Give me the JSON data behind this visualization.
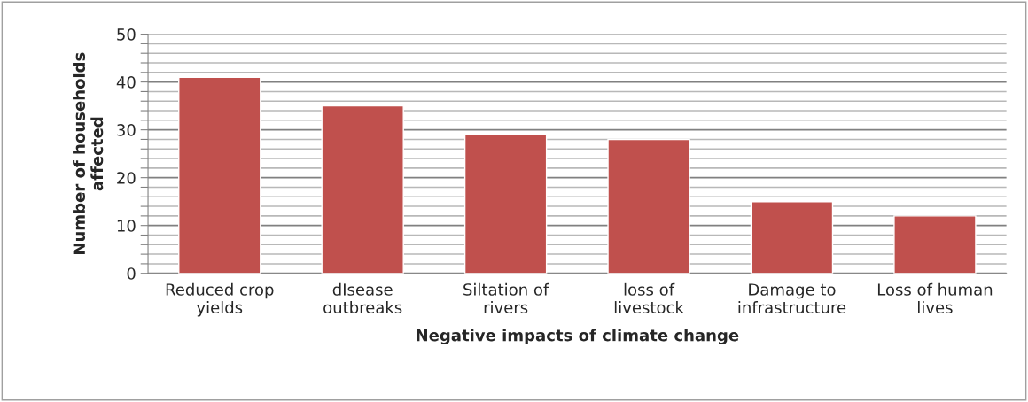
{
  "chart_data": {
    "type": "bar",
    "categories": [
      "Reduced crop\nyields",
      "dIsease\noutbreaks",
      "Siltation of\nrivers",
      "loss of\nlivestock",
      "Damage to\ninfrastructure",
      "Loss of human\nlives"
    ],
    "values": [
      41,
      35,
      29,
      28,
      15,
      12
    ],
    "color": "#c0504d",
    "xlabel": "Negative impacts of climate change",
    "ylabel": "Number of households\naffected",
    "ylim": [
      0,
      50
    ],
    "yticks": [
      0,
      {
        "value": 2,
        "label": null
      },
      {
        "value": 4,
        "label": null
      },
      {
        "value": 6,
        "label": null
      },
      {
        "value": 8,
        "label": null
      },
      10,
      {
        "value": 12,
        "label": null
      },
      {
        "value": 14,
        "label": null
      },
      {
        "value": 16,
        "label": null
      },
      {
        "value": 18,
        "label": null
      },
      20,
      {
        "value": 22,
        "label": null
      },
      {
        "value": 24,
        "label": null
      },
      {
        "value": 26,
        "label": null
      },
      {
        "value": 28,
        "label": null
      },
      30,
      {
        "value": 32,
        "label": null
      },
      {
        "value": 34,
        "label": null
      },
      {
        "value": 36,
        "label": null
      },
      {
        "value": 38,
        "label": null
      },
      40,
      {
        "value": 42,
        "label": null
      },
      {
        "value": 44,
        "label": null
      },
      {
        "value": 46,
        "label": null
      },
      {
        "value": 48,
        "label": null
      },
      50
    ],
    "grid": "y"
  }
}
